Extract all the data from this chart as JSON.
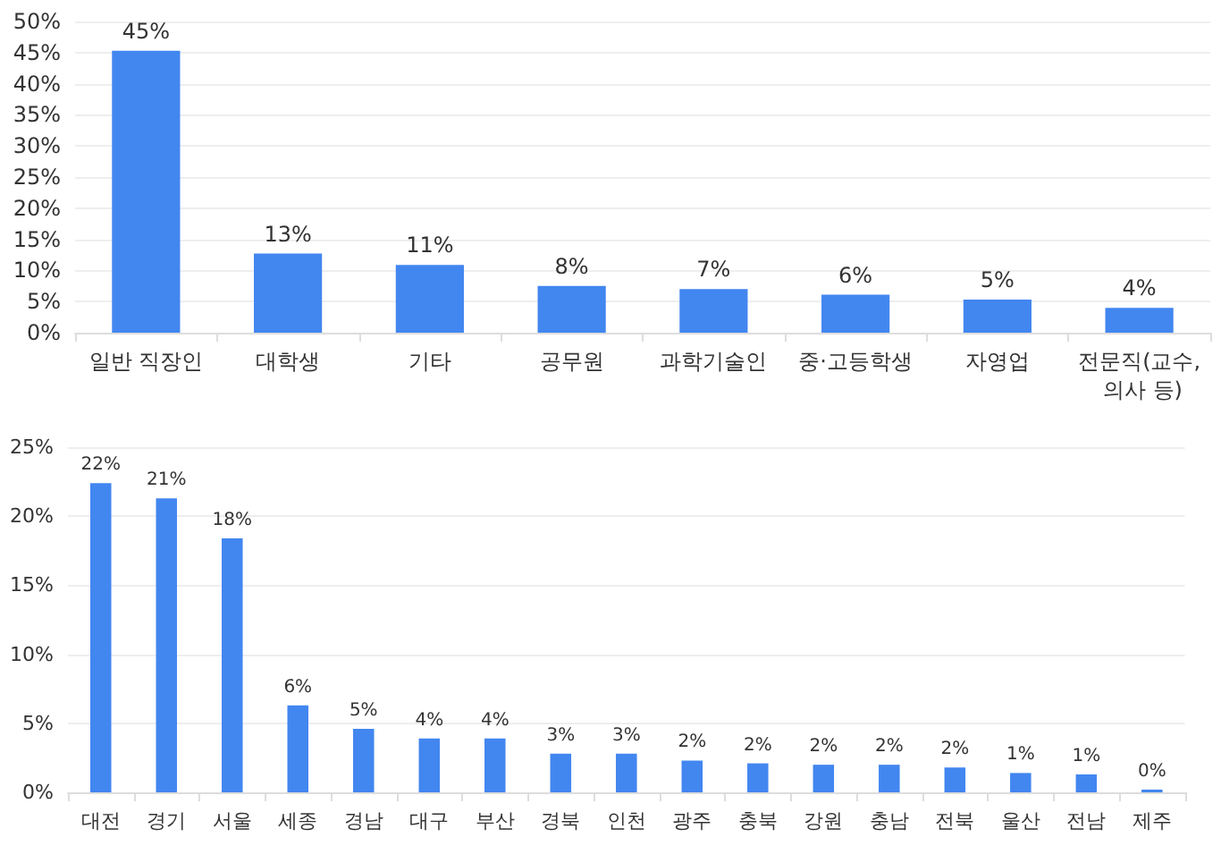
{
  "chart_data": [
    {
      "type": "bar",
      "categories": [
        "일반 직장인",
        "대학생",
        "기타",
        "공무원",
        "과학기술인",
        "중·고등학생",
        "자영업",
        "전문직(교수, 의사 등)"
      ],
      "values": [
        45.3,
        12.7,
        10.9,
        7.5,
        7.0,
        6.1,
        5.3,
        4.0
      ],
      "value_labels": [
        "45%",
        "13%",
        "11%",
        "8%",
        "7%",
        "6%",
        "5%",
        "4%"
      ],
      "color": "#4286f0",
      "ylim": [
        0,
        50
      ],
      "yticks": [
        {
          "value": 0,
          "label": "0%"
        },
        {
          "value": 5,
          "label": "5%"
        },
        {
          "value": 10,
          "label": "10%"
        },
        {
          "value": 15,
          "label": "15%"
        },
        {
          "value": 20,
          "label": "20%"
        },
        {
          "value": 25,
          "label": "25%"
        },
        {
          "value": 30,
          "label": "30%"
        },
        {
          "value": 35,
          "label": "35%"
        },
        {
          "value": 40,
          "label": "40%"
        },
        {
          "value": 45,
          "label": "45%"
        },
        {
          "value": 50,
          "label": "50%"
        }
      ],
      "grid": "y"
    },
    {
      "type": "bar",
      "categories": [
        "대전",
        "경기",
        "서울",
        "세종",
        "경남",
        "대구",
        "부산",
        "경북",
        "인천",
        "광주",
        "충북",
        "강원",
        "충남",
        "전북",
        "울산",
        "전남",
        "제주"
      ],
      "values": [
        22.4,
        21.3,
        18.4,
        6.3,
        4.6,
        3.9,
        3.9,
        2.8,
        2.8,
        2.3,
        2.1,
        2.0,
        2.0,
        1.8,
        1.4,
        1.3,
        0.2
      ],
      "value_labels": [
        "22%",
        "21%",
        "18%",
        "6%",
        "5%",
        "4%",
        "4%",
        "3%",
        "3%",
        "2%",
        "2%",
        "2%",
        "2%",
        "2%",
        "1%",
        "1%",
        "0%"
      ],
      "color": "#4286f0",
      "ylim": [
        0,
        25
      ],
      "yticks": [
        {
          "value": 0,
          "label": "0%"
        },
        {
          "value": 5,
          "label": "5%"
        },
        {
          "value": 10,
          "label": "10%"
        },
        {
          "value": 15,
          "label": "15%"
        },
        {
          "value": 20,
          "label": "20%"
        },
        {
          "value": 25,
          "label": "25%"
        }
      ],
      "grid": "y"
    }
  ]
}
